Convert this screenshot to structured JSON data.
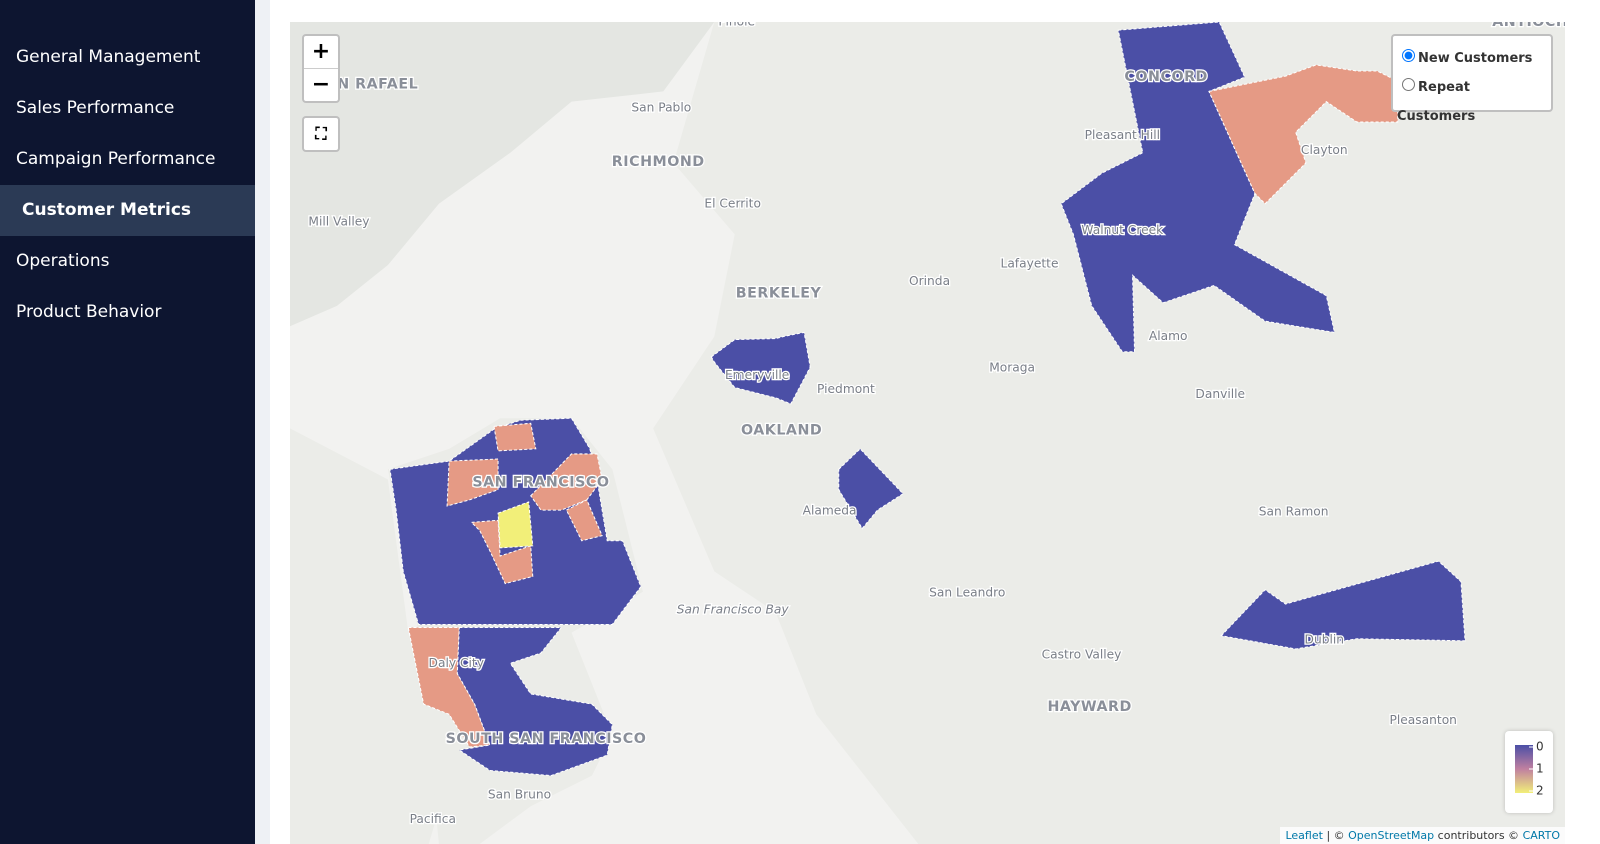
{
  "sidebar": {
    "nav": [
      "General Management",
      "Sales Performance",
      "Campaign Performance",
      "Customer Metrics",
      "Operations",
      "Product Behavior"
    ],
    "active": 3
  },
  "map": {
    "zoom_in": "+",
    "zoom_out": "−",
    "places": [
      "Pinole",
      "N RAFAEL",
      "San Pablo",
      "RICHMOND",
      "El Cerrito",
      "Mill Valley",
      "CONCORD",
      "Pleasant Hill",
      "Clayton",
      "Walnut Creek",
      "Lafayette",
      "Orinda",
      "BERKELEY",
      "Alamo",
      "Moraga",
      "Emeryville",
      "Piedmont",
      "Danville",
      "OAKLAND",
      "SAN FRANCISCO",
      "Alameda",
      "San Ramon",
      "San Leandro",
      "San Francisco Bay",
      "Castro Valley",
      "Dublin",
      "Daly City",
      "HAYWARD",
      "Pleasanton",
      "SOUTH SAN FRANCISCO",
      "San Bruno",
      "Pacifica",
      "ANTIOCH"
    ],
    "layers": [
      "New Customers",
      "Repeat Customers"
    ],
    "selected": 0,
    "legend": {
      "ticks": [
        0,
        1,
        2
      ]
    },
    "attribution": [
      {
        "text": "Leaflet",
        "link": true
      },
      {
        "text": "| ©",
        "link": false
      },
      {
        "text": "OpenStreetMap",
        "link": true
      },
      {
        "text": "contributors ©",
        "link": false
      },
      {
        "text": "CARTO",
        "link": true
      }
    ]
  }
}
